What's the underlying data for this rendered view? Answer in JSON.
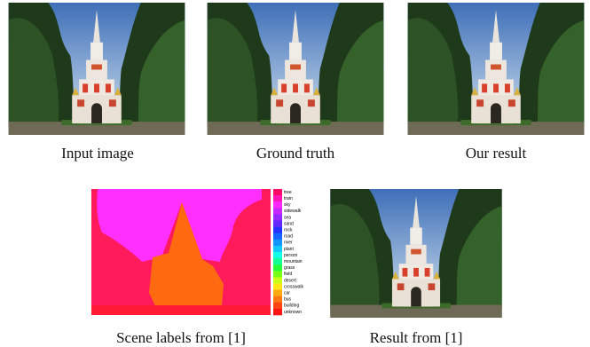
{
  "captions": {
    "input": "Input image",
    "ground_truth": "Ground truth",
    "our_result": "Our result",
    "scene_labels": "Scene labels from [1]",
    "result_1": "Result from [1]"
  },
  "legend": [
    {
      "label": "tree",
      "color": "#ff0a64"
    },
    {
      "label": "train",
      "color": "#ff14b4"
    },
    {
      "label": "sky",
      "color": "#ff28ff"
    },
    {
      "label": "sidewalk",
      "color": "#c828ff"
    },
    {
      "label": "sea",
      "color": "#9628ff"
    },
    {
      "label": "sand",
      "color": "#6428ff"
    },
    {
      "label": "rock",
      "color": "#2832ff"
    },
    {
      "label": "road",
      "color": "#1464ff"
    },
    {
      "label": "river",
      "color": "#1496ff"
    },
    {
      "label": "plant",
      "color": "#14c8ff"
    },
    {
      "label": "person",
      "color": "#14ffe6"
    },
    {
      "label": "mountain",
      "color": "#14ff96"
    },
    {
      "label": "grass",
      "color": "#28ff3c"
    },
    {
      "label": "field",
      "color": "#78ff14"
    },
    {
      "label": "desert",
      "color": "#c8ff14"
    },
    {
      "label": "crosswalk",
      "color": "#ffe614"
    },
    {
      "label": "car",
      "color": "#ffaa14"
    },
    {
      "label": "bus",
      "color": "#ff7814"
    },
    {
      "label": "building",
      "color": "#ff4614"
    },
    {
      "label": "unknown",
      "color": "#ff1414"
    }
  ]
}
